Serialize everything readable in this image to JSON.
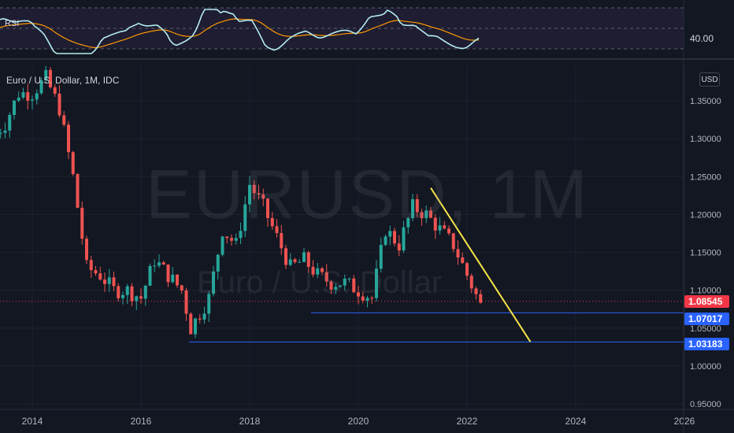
{
  "chart_title": "Euro / U.S. Dollar, 1M, IDC",
  "watermark": {
    "symbol": "EURUSD, 1M",
    "description": "Euro / U.S. Dollar"
  },
  "indicator": {
    "name": "RSI",
    "scale_label": "40.00"
  },
  "currency": "USD",
  "colors": {
    "background": "#131722",
    "up_candle": "#26a69a",
    "down_candle": "#ef5350",
    "rsi_line": "#b2ebf2",
    "rsi_ma": "#ff9800",
    "trend_line": "#f5e348",
    "support_line": "#2962ff",
    "current_price_line": "#f23645"
  },
  "price_axis": {
    "labels": [
      "1.35000",
      "1.30000",
      "1.25000",
      "1.20000",
      "1.15000",
      "1.10000",
      "1.05000",
      "1.00000",
      "0.95000"
    ]
  },
  "time_axis": {
    "labels": [
      "2014",
      "2016",
      "2018",
      "2020",
      "2022",
      "2024",
      "2026"
    ]
  },
  "badges": {
    "current_price": "1.08545",
    "support_1": "1.07017",
    "support_2": "1.03183"
  },
  "chart_data": {
    "type": "candlestick",
    "timeframe": "1M",
    "price_range": [
      0.95,
      1.39
    ],
    "series": [
      {
        "name": "EUR/USD",
        "ohlc_approx": [
          {
            "date": "2013-04",
            "close": 1.3
          },
          {
            "date": "2013-07",
            "close": 1.32
          },
          {
            "date": "2013-10",
            "close": 1.36
          },
          {
            "date": "2014-01",
            "close": 1.36
          },
          {
            "date": "2014-04",
            "close": 1.38
          },
          {
            "date": "2014-07",
            "close": 1.34
          },
          {
            "date": "2014-10",
            "close": 1.25
          },
          {
            "date": "2015-01",
            "close": 1.13
          },
          {
            "date": "2015-04",
            "close": 1.12
          },
          {
            "date": "2015-07",
            "close": 1.1
          },
          {
            "date": "2015-10",
            "close": 1.1
          },
          {
            "date": "2016-01",
            "close": 1.09
          },
          {
            "date": "2016-04",
            "close": 1.14
          },
          {
            "date": "2016-07",
            "close": 1.12
          },
          {
            "date": "2016-10",
            "close": 1.1
          },
          {
            "date": "2016-12",
            "close": 1.05
          },
          {
            "date": "2017-04",
            "close": 1.09
          },
          {
            "date": "2017-07",
            "close": 1.18
          },
          {
            "date": "2017-10",
            "close": 1.16
          },
          {
            "date": "2018-01",
            "close": 1.24
          },
          {
            "date": "2018-04",
            "close": 1.21
          },
          {
            "date": "2018-07",
            "close": 1.17
          },
          {
            "date": "2018-10",
            "close": 1.13
          },
          {
            "date": "2019-01",
            "close": 1.14
          },
          {
            "date": "2019-04",
            "close": 1.12
          },
          {
            "date": "2019-07",
            "close": 1.11
          },
          {
            "date": "2019-10",
            "close": 1.11
          },
          {
            "date": "2020-01",
            "close": 1.1
          },
          {
            "date": "2020-04",
            "close": 1.09
          },
          {
            "date": "2020-07",
            "close": 1.18
          },
          {
            "date": "2020-10",
            "close": 1.16
          },
          {
            "date": "2021-01",
            "close": 1.21
          },
          {
            "date": "2021-04",
            "close": 1.2
          },
          {
            "date": "2021-07",
            "close": 1.18
          },
          {
            "date": "2021-10",
            "close": 1.16
          },
          {
            "date": "2022-01",
            "close": 1.12
          },
          {
            "date": "2022-04",
            "close": 1.08
          }
        ]
      }
    ],
    "horizontal_lines": [
      1.08545,
      1.07017,
      1.03183
    ],
    "trend_line": {
      "from": {
        "date": "2021-05",
        "price": 1.235
      },
      "to": {
        "date": "2023-03",
        "price": 1.032
      }
    },
    "rsi_level": 40.0
  }
}
